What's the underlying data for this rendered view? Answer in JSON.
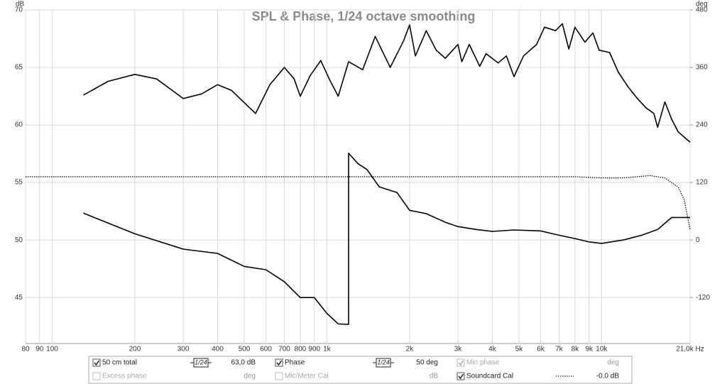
{
  "chart_data": {
    "type": "line",
    "title": "SPL & Phase, 1/24 octave smoothing",
    "y_label": "dB",
    "y2_label": "deg",
    "xscale": "log",
    "grid": true,
    "xlim": [
      80,
      21000
    ],
    "xticks": [
      80,
      90,
      100,
      200,
      300,
      400,
      500,
      600,
      700,
      800,
      900,
      {
        "value": 1000,
        "label": "1k"
      },
      {
        "value": 2000,
        "label": "2k"
      },
      {
        "value": 3000,
        "label": "3k"
      },
      {
        "value": 4000,
        "label": "4k"
      },
      {
        "value": 5000,
        "label": "5k"
      },
      {
        "value": 6000,
        "label": "6k"
      },
      {
        "value": 7000,
        "label": "7k"
      },
      {
        "value": 8000,
        "label": "8k"
      },
      {
        "value": 9000,
        "label": "9k"
      },
      {
        "value": 10000,
        "label": "10k"
      },
      {
        "value": 21000,
        "label": "21,0k Hz"
      }
    ],
    "ylim": [
      41,
      70
    ],
    "yticks": [
      45,
      50,
      55,
      60,
      65,
      70
    ],
    "y2lim": [
      -216,
      480
    ],
    "y2ticks": [
      -120,
      0,
      120,
      240,
      360,
      480
    ],
    "series": [
      {
        "name": "50 cm total",
        "color": "#000000",
        "axis": "y",
        "style": "solid",
        "checked": true,
        "smoothing": "1/24",
        "readout": "63,0 dB",
        "x": [
          130,
          160,
          200,
          240,
          300,
          350,
          400,
          450,
          550,
          620,
          700,
          760,
          800,
          870,
          950,
          1020,
          1100,
          1200,
          1350,
          1500,
          1700,
          1900,
          2000,
          2100,
          2300,
          2500,
          2700,
          3000,
          3100,
          3300,
          3600,
          3800,
          4200,
          4500,
          4800,
          5200,
          5800,
          6200,
          6800,
          7200,
          7600,
          8000,
          8700,
          9300,
          9800,
          10700,
          11500,
          12500,
          13500,
          14500,
          15500,
          16000,
          17000,
          18000,
          19000,
          21000
        ],
        "values": [
          62.6,
          63.8,
          64.4,
          64.0,
          62.3,
          62.7,
          63.5,
          63.0,
          61.0,
          63.5,
          65.0,
          64.0,
          62.5,
          64.3,
          65.6,
          64.0,
          62.5,
          65.5,
          64.8,
          67.7,
          65.0,
          67.3,
          68.7,
          66.0,
          68.2,
          66.5,
          65.8,
          67.0,
          65.5,
          67.0,
          65.1,
          66.2,
          65.4,
          66.0,
          64.2,
          66.0,
          67.0,
          68.5,
          68.2,
          68.8,
          66.6,
          68.5,
          67.2,
          68.0,
          66.5,
          66.3,
          64.6,
          63.3,
          62.3,
          61.5,
          61.0,
          59.8,
          62.0,
          60.5,
          59.4,
          58.5
        ]
      },
      {
        "name": "Phase",
        "color": "#000000",
        "axis": "y2",
        "style": "solid",
        "checked": true,
        "smoothing": "1/24",
        "readout": "50 deg",
        "x": [
          130,
          200,
          300,
          400,
          500,
          600,
          700,
          800,
          900,
          1000,
          1100,
          1200,
          1200,
          1300,
          1400,
          1550,
          1800,
          2000,
          2300,
          2700,
          3000,
          3500,
          4000,
          4800,
          6000,
          7000,
          8000,
          9000,
          10000,
          12000,
          14000,
          16000,
          18000,
          21000
        ],
        "values": [
          56,
          13,
          -19,
          -28,
          -55,
          -62,
          -87,
          -120,
          -120,
          -153,
          -175,
          -176,
          181,
          159,
          147,
          111,
          99,
          62,
          55,
          37,
          28,
          22,
          18,
          21,
          19,
          10,
          3,
          -4,
          -7,
          0,
          10,
          22,
          47,
          47
        ]
      },
      {
        "name": "Soundcard Cal",
        "color": "#000000",
        "axis": "y",
        "style": "dotted",
        "checked": true,
        "readout": "-0,0 dB",
        "x": [
          80,
          500,
          1000,
          3000,
          6000,
          8000,
          10000,
          12000,
          15000,
          17000,
          19000,
          20000,
          21000
        ],
        "values": [
          55.5,
          55.5,
          55.5,
          55.5,
          55.5,
          55.5,
          55.4,
          55.4,
          55.6,
          55.4,
          54.6,
          53.5,
          50.9
        ]
      }
    ],
    "extra_legend": [
      {
        "name": "Min phase",
        "checked": true,
        "enabled": false,
        "readout": "deg"
      },
      {
        "name": "Excess phase",
        "checked": false,
        "enabled": false,
        "readout": "deg"
      },
      {
        "name": "Mic/Meter Cal",
        "checked": false,
        "enabled": false,
        "readout": "dB"
      }
    ]
  }
}
